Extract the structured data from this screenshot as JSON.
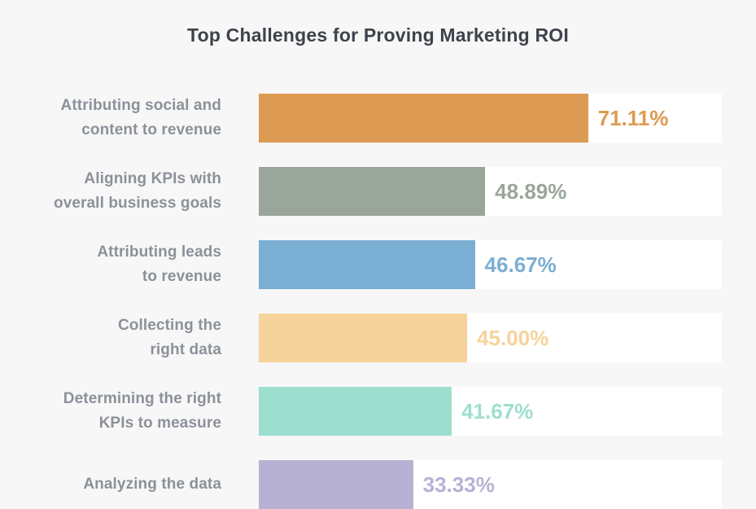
{
  "page": {
    "background": "#f7f7f8"
  },
  "chart_data": {
    "type": "bar",
    "orientation": "horizontal",
    "title": "Top Challenges for Proving Marketing ROI",
    "xlabel": "",
    "ylabel": "",
    "xlim": [
      0,
      100
    ],
    "grid": false,
    "legend": "none",
    "value_suffix": "%",
    "categories": [
      "Attributing social and content to revenue",
      "Aligning KPIs with overall business goals",
      "Attributing leads to revenue",
      "Collecting the right data",
      "Determining the right KPIs to measure",
      "Analyzing the data"
    ],
    "values": [
      71.11,
      48.89,
      46.67,
      45.0,
      41.67,
      33.33
    ],
    "bars": [
      {
        "label_lines": [
          "Attributing social and",
          "content to revenue"
        ],
        "value": 71.11,
        "value_label": "71.11%",
        "color": "#dd9a52"
      },
      {
        "label_lines": [
          "Aligning KPIs with",
          "overall business goals"
        ],
        "value": 48.89,
        "value_label": "48.89%",
        "color": "#9aa69b"
      },
      {
        "label_lines": [
          "Attributing leads",
          "to revenue"
        ],
        "value": 46.67,
        "value_label": "46.67%",
        "color": "#7baed3"
      },
      {
        "label_lines": [
          "Collecting the",
          "right data"
        ],
        "value": 45.0,
        "value_label": "45.00%",
        "color": "#f6d39b"
      },
      {
        "label_lines": [
          "Determining the right",
          "KPIs to measure"
        ],
        "value": 41.67,
        "value_label": "41.67%",
        "color": "#9ddfcf"
      },
      {
        "label_lines": [
          "Analyzing the data"
        ],
        "value": 33.33,
        "value_label": "33.33%",
        "color": "#b7b2d4"
      }
    ],
    "colors": {
      "track": "#ffffff",
      "title_text": "#3e434b",
      "category_text": "#8c9199"
    }
  }
}
